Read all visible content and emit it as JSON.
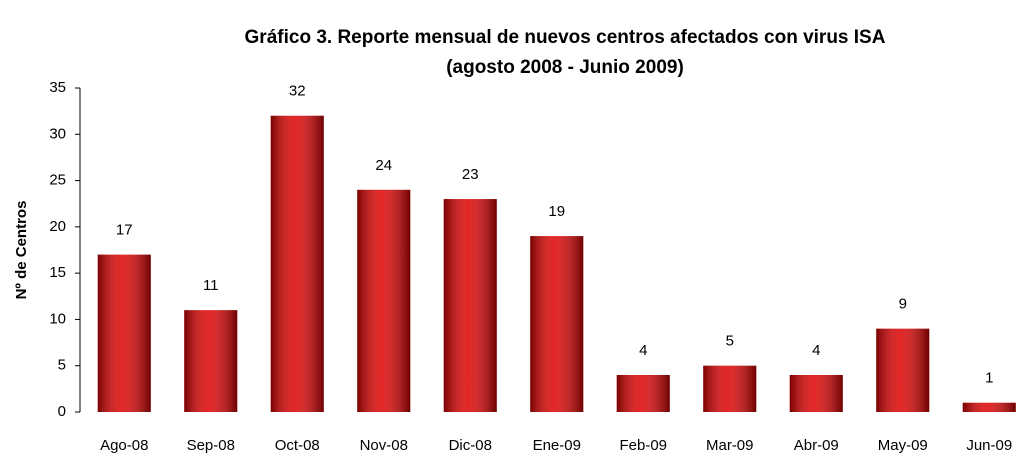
{
  "chart_data": {
    "type": "bar",
    "title": "Gráfico 3. Reporte mensual de nuevos centros afectados con virus ISA",
    "subtitle": "(agosto 2008 - Junio 2009)",
    "y_label": "Nº de Centros",
    "categories": [
      "Ago-08",
      "Sep-08",
      "Oct-08",
      "Nov-08",
      "Dic-08",
      "Ene-09",
      "Feb-09",
      "Mar-09",
      "Abr-09",
      "May-09",
      "Jun-09"
    ],
    "values": [
      17,
      11,
      32,
      24,
      23,
      19,
      4,
      5,
      4,
      9,
      1
    ],
    "color": "#dd0000",
    "ylim": [
      0,
      35
    ],
    "yticks": [
      0,
      5,
      10,
      15,
      20,
      25,
      30,
      35
    ],
    "grid": false
  }
}
